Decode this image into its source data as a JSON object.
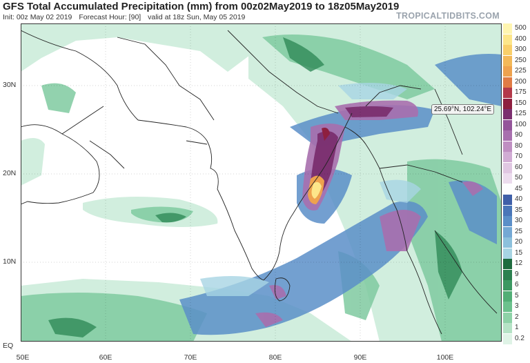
{
  "header": {
    "title": "GFS Total Accumulated Precipitation (mm) from 00z02May2019 to 18z05May2019",
    "init": "Init: 00z May 02 2019",
    "forecast_hour": "Forecast Hour: [90]",
    "valid": "valid at 18z Sun, May 05 2019",
    "brand": "TROPICALTIDBITS.COM"
  },
  "map": {
    "lat_labels": [
      "30N",
      "20N",
      "10N",
      "EQ"
    ],
    "lon_labels": [
      "50E",
      "60E",
      "70E",
      "80E",
      "90E",
      "100E"
    ],
    "tooltip": "25.69°N, 102.24°E"
  },
  "colorbar": {
    "units": "mm",
    "levels": [
      {
        "label": "500",
        "color": "#fff5b0"
      },
      {
        "label": "400",
        "color": "#fde68a"
      },
      {
        "label": "300",
        "color": "#f9cf6a"
      },
      {
        "label": "250",
        "color": "#f3b858"
      },
      {
        "label": "225",
        "color": "#eea24e"
      },
      {
        "label": "200",
        "color": "#e07b44"
      },
      {
        "label": "175",
        "color": "#b3394a"
      },
      {
        "label": "150",
        "color": "#8e1f3f"
      },
      {
        "label": "125",
        "color": "#7b2f6f"
      },
      {
        "label": "100",
        "color": "#94559a"
      },
      {
        "label": "90",
        "color": "#a86fae"
      },
      {
        "label": "80",
        "color": "#bf8fc2"
      },
      {
        "label": "70",
        "color": "#d1acd4"
      },
      {
        "label": "60",
        "color": "#e0c7e2"
      },
      {
        "label": "50",
        "color": "#ecdcee"
      },
      {
        "label": "45",
        "color": "#fdfdff"
      },
      {
        "label": "40",
        "color": "#3f5fa8"
      },
      {
        "label": "35",
        "color": "#4a76b8"
      },
      {
        "label": "30",
        "color": "#5b8fc8"
      },
      {
        "label": "25",
        "color": "#74a8d4"
      },
      {
        "label": "20",
        "color": "#8cc0dc"
      },
      {
        "label": "15",
        "color": "#a7d4e3"
      },
      {
        "label": "12",
        "color": "#1f6b3f"
      },
      {
        "label": "9",
        "color": "#2d8050"
      },
      {
        "label": "6",
        "color": "#3d9862"
      },
      {
        "label": "5",
        "color": "#52ae76"
      },
      {
        "label": "3",
        "color": "#6cc18d"
      },
      {
        "label": "2",
        "color": "#8ed2a7"
      },
      {
        "label": "1",
        "color": "#b6e3c6"
      },
      {
        "label": "0.2",
        "color": "#dff3e6"
      }
    ]
  }
}
